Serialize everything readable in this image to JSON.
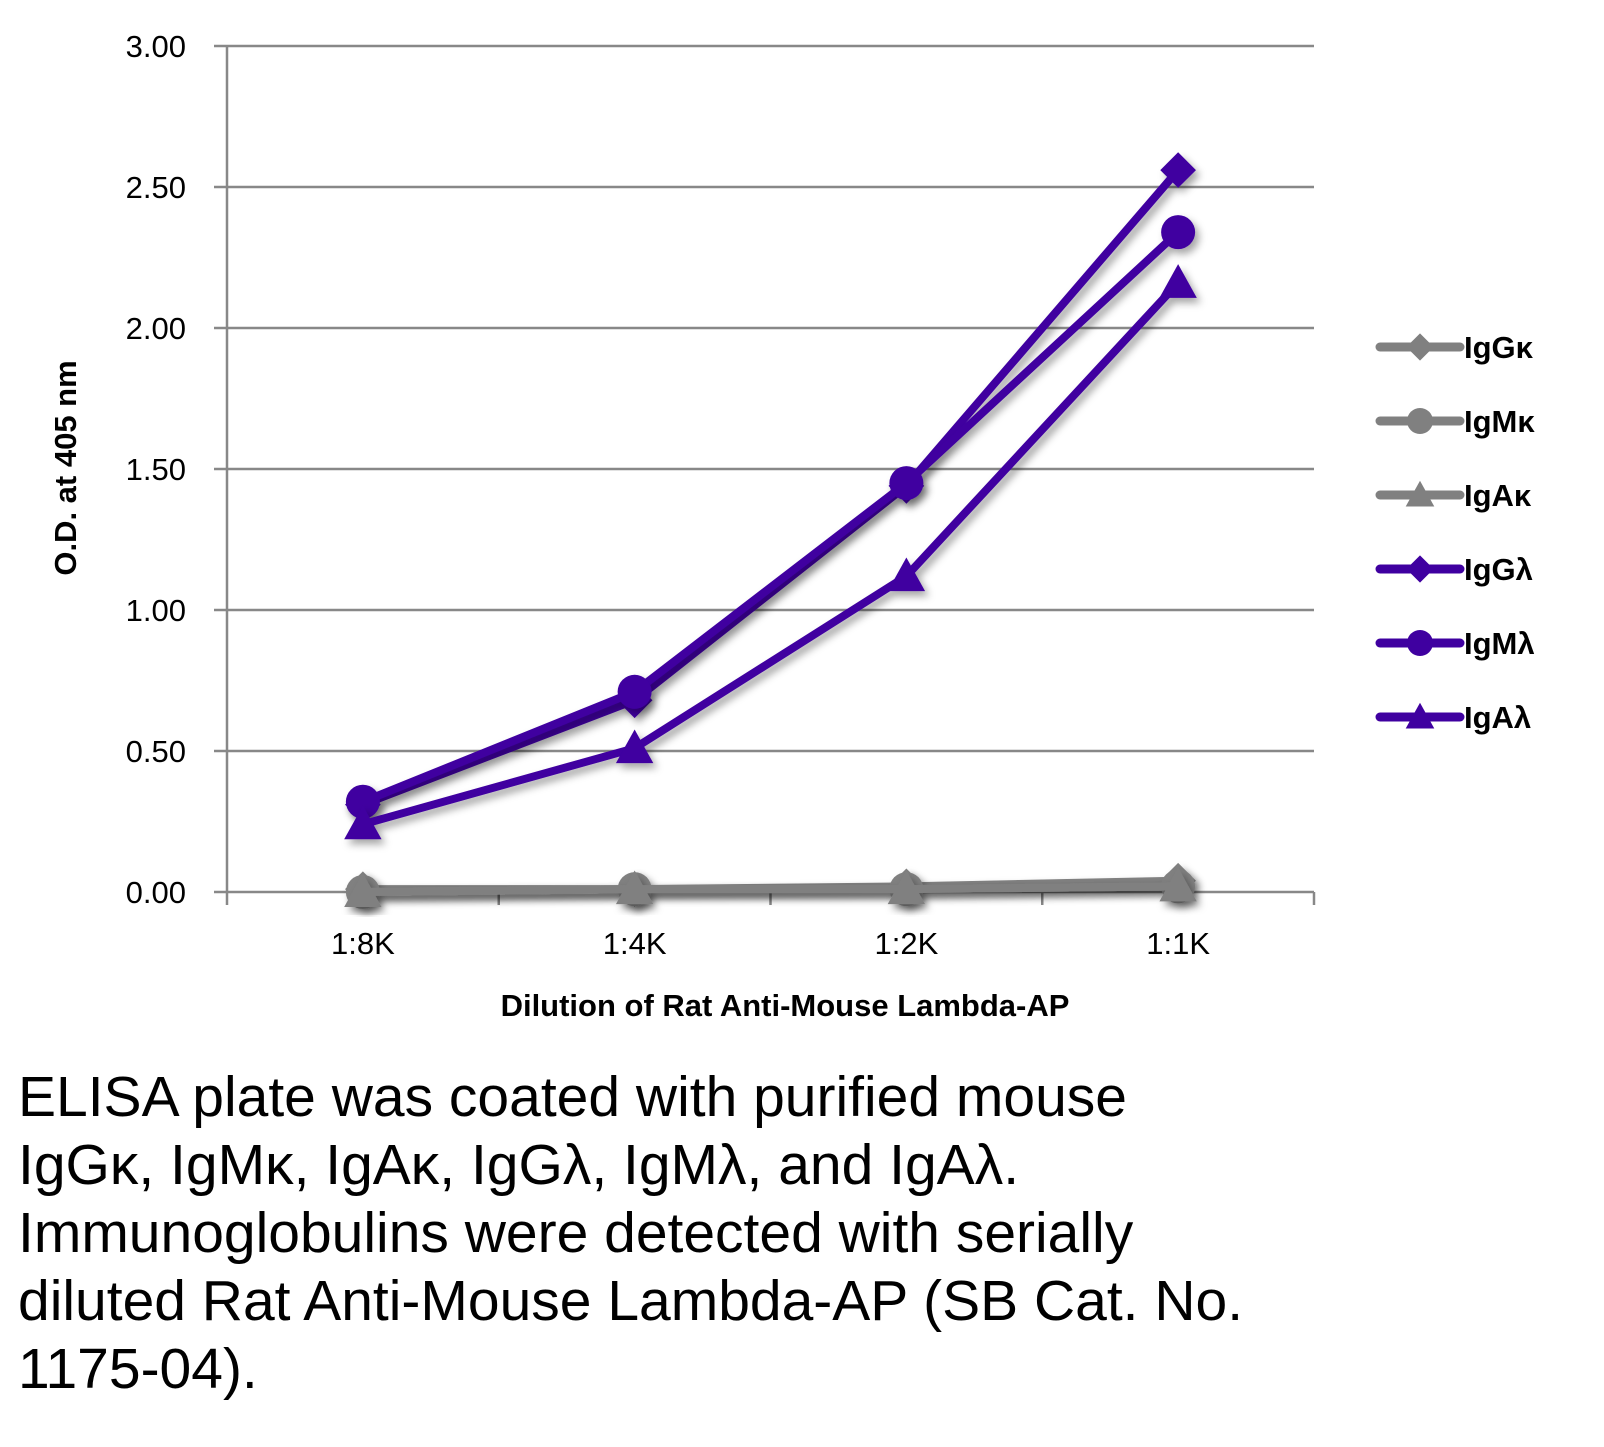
{
  "chart_data": {
    "type": "line",
    "title": "",
    "xlabel": "Dilution of Rat Anti-Mouse Lambda-AP",
    "ylabel": "O.D. at 405 nm",
    "categories": [
      "1:8K",
      "1:4K",
      "1:2K",
      "1:1K"
    ],
    "ylim": [
      0,
      3.0
    ],
    "yticks": [
      "0.00",
      "0.50",
      "1.00",
      "1.50",
      "2.00",
      "2.50",
      "3.00"
    ],
    "grid": true,
    "legend_position": "right",
    "series": [
      {
        "name": "IgGκ",
        "marker": "diamond",
        "color": "#808080",
        "values": [
          0.01,
          0.01,
          0.02,
          0.04
        ]
      },
      {
        "name": "IgMκ",
        "marker": "circle",
        "color": "#808080",
        "values": [
          0.0,
          0.01,
          0.01,
          0.02
        ]
      },
      {
        "name": "IgAκ",
        "marker": "triangle",
        "color": "#808080",
        "values": [
          0.0,
          0.01,
          0.01,
          0.02
        ]
      },
      {
        "name": "IgGλ",
        "marker": "diamond",
        "color": "#3f00a0",
        "values": [
          0.31,
          0.68,
          1.44,
          2.56
        ]
      },
      {
        "name": "IgMλ",
        "marker": "circle",
        "color": "#3f00a0",
        "values": [
          0.32,
          0.71,
          1.45,
          2.34
        ]
      },
      {
        "name": "IgAλ",
        "marker": "triangle",
        "color": "#3f00a0",
        "values": [
          0.24,
          0.51,
          1.12,
          2.16
        ]
      }
    ]
  },
  "caption": {
    "lines": [
      "ELISA plate was coated with purified mouse",
      "IgGκ, IgMκ, IgAκ, IgGλ, IgMλ, and IgAλ.",
      "Immunoglobulins were detected with serially",
      "diluted Rat Anti-Mouse Lambda-AP (SB Cat. No.",
      "1175-04)."
    ]
  }
}
